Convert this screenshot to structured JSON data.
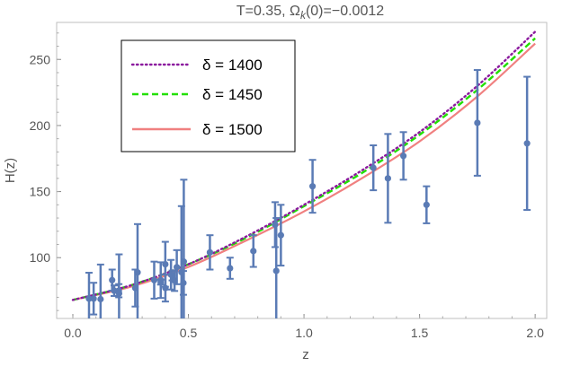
{
  "chart_data": {
    "type": "scatter",
    "title": "T=0.35, Ω",
    "title_sub": "k",
    "title_rest": "(0)=−0.0012",
    "xlabel": "z",
    "ylabel": "H(z)",
    "xlim": [
      -0.07,
      2.05
    ],
    "ylim": [
      54,
      278
    ],
    "x_ticks": [
      0.0,
      0.5,
      1.0,
      1.5,
      2.0
    ],
    "x_tick_labels": [
      "0.0",
      "0.5",
      "1.0",
      "1.5",
      "2.0"
    ],
    "y_ticks": [
      100,
      150,
      200,
      250
    ],
    "y_tick_labels": [
      "100",
      "150",
      "200",
      "250"
    ],
    "grid": false,
    "legend_position": "top-left",
    "series": [
      {
        "name": "δ = 1400",
        "style": "dotted",
        "color": "#8b1a9e",
        "x": [
          0.0,
          0.25,
          0.5,
          0.75,
          1.0,
          1.25,
          1.5,
          1.75,
          2.0
        ],
        "y": [
          68,
          79,
          95,
          116,
          140,
          166,
          195,
          230,
          271
        ]
      },
      {
        "name": "δ = 1450",
        "style": "dashed",
        "color": "#22e000",
        "x": [
          0.0,
          0.25,
          0.5,
          0.75,
          1.0,
          1.25,
          1.5,
          1.75,
          2.0
        ],
        "y": [
          68,
          79,
          95,
          115,
          139,
          164,
          193,
          227,
          266
        ]
      },
      {
        "name": "δ = 1500",
        "style": "solid",
        "color": "#f08080",
        "x": [
          0.0,
          0.25,
          0.5,
          0.75,
          1.0,
          1.25,
          1.5,
          1.75,
          2.0
        ],
        "y": [
          68,
          78,
          93,
          113,
          135,
          160,
          188,
          222,
          262
        ]
      }
    ],
    "observations": {
      "name": "H(z) data",
      "color": "#5a7bb5",
      "points": [
        {
          "z": 0.07,
          "H": 69,
          "err": 19.6
        },
        {
          "z": 0.09,
          "H": 69,
          "err": 12
        },
        {
          "z": 0.12,
          "H": 68.6,
          "err": 26.2
        },
        {
          "z": 0.17,
          "H": 83,
          "err": 8
        },
        {
          "z": 0.179,
          "H": 75,
          "err": 4
        },
        {
          "z": 0.199,
          "H": 75,
          "err": 5
        },
        {
          "z": 0.2,
          "H": 72.9,
          "err": 29.6
        },
        {
          "z": 0.27,
          "H": 77,
          "err": 14
        },
        {
          "z": 0.28,
          "H": 88.8,
          "err": 36.6
        },
        {
          "z": 0.352,
          "H": 83,
          "err": 14
        },
        {
          "z": 0.38,
          "H": 81.5,
          "err": 1.9
        },
        {
          "z": 0.3802,
          "H": 83,
          "err": 13.5
        },
        {
          "z": 0.4,
          "H": 95,
          "err": 17
        },
        {
          "z": 0.4004,
          "H": 77,
          "err": 10.2
        },
        {
          "z": 0.4247,
          "H": 87.1,
          "err": 11.2
        },
        {
          "z": 0.43,
          "H": 86.5,
          "err": 3.7
        },
        {
          "z": 0.44,
          "H": 82.6,
          "err": 7.8
        },
        {
          "z": 0.4497,
          "H": 92.8,
          "err": 12.9
        },
        {
          "z": 0.47,
          "H": 89,
          "err": 50
        },
        {
          "z": 0.4783,
          "H": 80.9,
          "err": 9
        },
        {
          "z": 0.48,
          "H": 97,
          "err": 62
        },
        {
          "z": 0.593,
          "H": 104,
          "err": 13
        },
        {
          "z": 0.68,
          "H": 92,
          "err": 8
        },
        {
          "z": 0.781,
          "H": 105,
          "err": 12
        },
        {
          "z": 0.875,
          "H": 125,
          "err": 17
        },
        {
          "z": 0.88,
          "H": 90,
          "err": 40
        },
        {
          "z": 0.9,
          "H": 117,
          "err": 23
        },
        {
          "z": 1.037,
          "H": 154,
          "err": 20
        },
        {
          "z": 1.3,
          "H": 168,
          "err": 17
        },
        {
          "z": 1.363,
          "H": 160,
          "err": 33.6
        },
        {
          "z": 1.43,
          "H": 177,
          "err": 18
        },
        {
          "z": 1.53,
          "H": 140,
          "err": 14
        },
        {
          "z": 1.75,
          "H": 202,
          "err": 40
        },
        {
          "z": 1.965,
          "H": 186.5,
          "err": 50.4
        }
      ]
    }
  }
}
